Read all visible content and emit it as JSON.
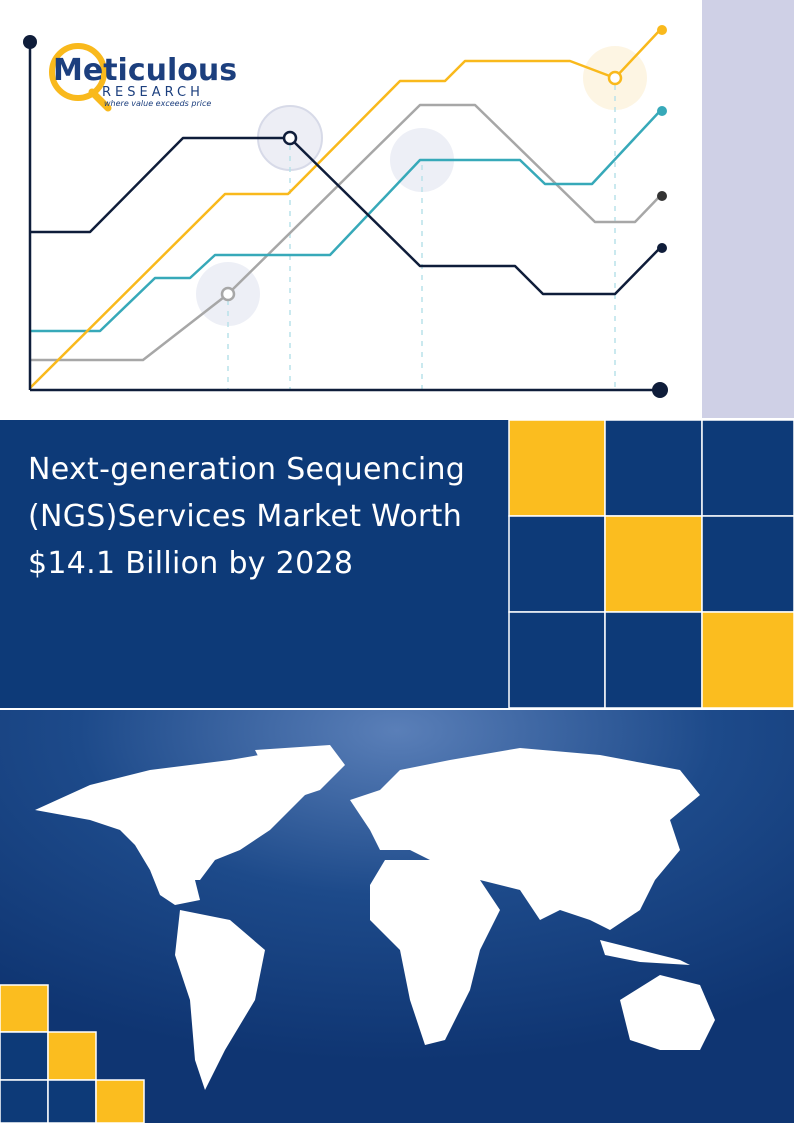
{
  "logo": {
    "name": "Meticulous",
    "sub": "RESEARCH",
    "tagline": "where value exceeds price"
  },
  "title": {
    "lines": [
      "Next-generation Sequencing",
      "(NGS)Services Market Worth",
      "$14.1 Billion by 2028"
    ]
  }
}
